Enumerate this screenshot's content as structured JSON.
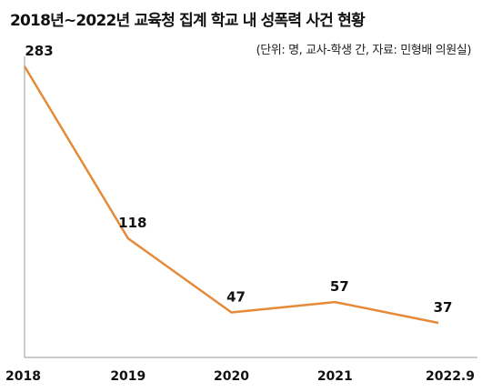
{
  "title": "2018년~2022년 교육청 집계 학교 내 성폭력 사건 현황",
  "subtitle": "(단위: 명, 교사-학생 간, 자료: 민형배 의원실)",
  "colors": {
    "line": "#e58a3a",
    "axis": "#9a9a9a",
    "text": "#111111"
  },
  "chart_data": {
    "type": "line",
    "title": "2018년~2022년 교육청 집계 학교 내 성폭력 사건 현황",
    "subtitle": "(단위: 명, 교사-학생 간, 자료: 민형배 의원실)",
    "categories": [
      "2018",
      "2019",
      "2020",
      "2021",
      "2022.9"
    ],
    "series": [
      {
        "values": [
          283,
          118,
          47,
          57,
          37
        ]
      }
    ],
    "data_labels": [
      "283",
      "118",
      "47",
      "57",
      "37"
    ],
    "xlabel": "",
    "ylabel": "",
    "ylim": [
      0,
      283
    ],
    "grid": false,
    "legend": "none"
  }
}
